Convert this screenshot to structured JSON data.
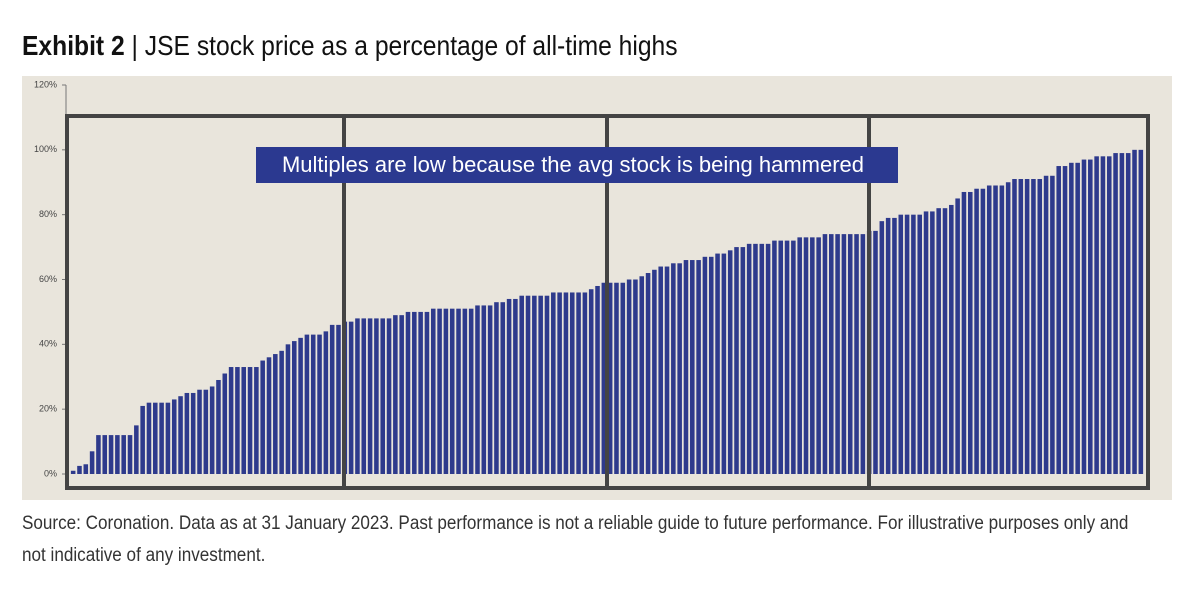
{
  "chart_data": {
    "type": "bar",
    "title": "Exhibit 2",
    "subtitle": "| JSE stock price as a percentage of all-time highs",
    "annotation": "Multiples are low because the avg stock is being hammered",
    "source": "Source: Coronation. Data as at 31 January 2023. Past performance is not a reliable guide to future performance. For illustrative purposes only and not indicative of any investment.",
    "color": "#2e3a8c",
    "ylim": [
      0,
      120
    ],
    "yticks": [
      {
        "value": 0,
        "label": "0%"
      },
      {
        "value": 20,
        "label": "20%"
      },
      {
        "value": 40,
        "label": "40%"
      },
      {
        "value": 60,
        "label": "60%"
      },
      {
        "value": 80,
        "label": "80%"
      },
      {
        "value": 100,
        "label": "100%"
      },
      {
        "value": 120,
        "label": "120%"
      }
    ],
    "values": [
      1,
      2.5,
      3,
      7,
      12,
      12,
      12,
      12,
      12,
      12,
      15,
      21,
      22,
      22,
      22,
      22,
      23,
      24,
      25,
      25,
      26,
      26,
      27,
      29,
      31,
      33,
      33,
      33,
      33,
      33,
      35,
      36,
      37,
      38,
      40,
      41,
      42,
      43,
      43,
      43,
      44,
      46,
      46,
      47,
      47,
      48,
      48,
      48,
      48,
      48,
      48,
      49,
      49,
      50,
      50,
      50,
      50,
      51,
      51,
      51,
      51,
      51,
      51,
      51,
      52,
      52,
      52,
      53,
      53,
      54,
      54,
      55,
      55,
      55,
      55,
      55,
      56,
      56,
      56,
      56,
      56,
      56,
      57,
      58,
      59,
      59,
      59,
      59,
      60,
      60,
      61,
      62,
      63,
      64,
      64,
      65,
      65,
      66,
      66,
      66,
      67,
      67,
      68,
      68,
      69,
      70,
      70,
      71,
      71,
      71,
      71,
      72,
      72,
      72,
      72,
      73,
      73,
      73,
      73,
      74,
      74,
      74,
      74,
      74,
      74,
      74,
      75,
      75,
      78,
      79,
      79,
      80,
      80,
      80,
      80,
      81,
      81,
      82,
      82,
      83,
      85,
      87,
      87,
      88,
      88,
      89,
      89,
      89,
      90,
      91,
      91,
      91,
      91,
      91,
      92,
      92,
      95,
      95,
      96,
      96,
      97,
      97,
      98,
      98,
      98,
      99,
      99,
      99,
      100,
      100
    ]
  }
}
